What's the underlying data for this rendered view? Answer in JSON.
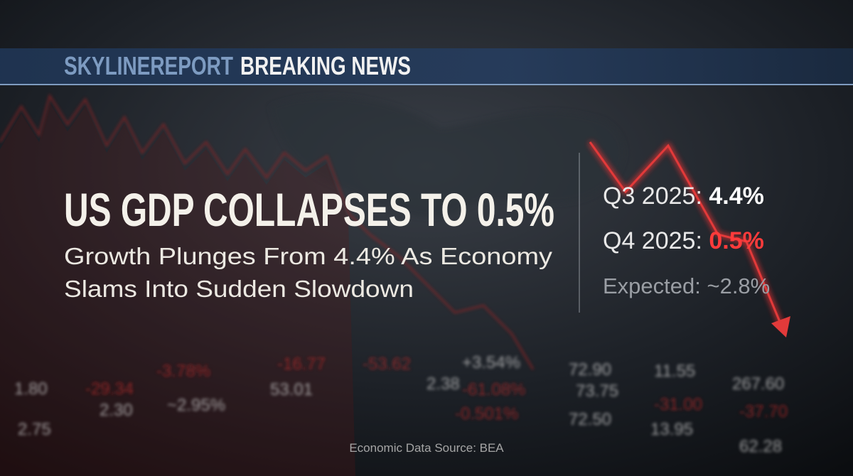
{
  "header": {
    "brand": "SKYLINEREPORT",
    "label": "BREAKING NEWS"
  },
  "headline": "US GDP COLLAPSES TO 0.5%",
  "subheadline": [
    "Growth Plunges From 4.4% As Economy",
    "Slams Into Sudden Slowdown"
  ],
  "stats": [
    {
      "label": "Q3 2025:",
      "value": "4.4%"
    },
    {
      "label": "Q4 2025:",
      "value": "0.5%"
    },
    {
      "label": "Expected: ~2.8%"
    }
  ],
  "source": "Economic Data Source: BEA",
  "ticker": [
    "1.80",
    "-29.34",
    "-3.78%",
    "-16.77",
    "-53.62",
    "+3.54%",
    "72.90",
    "11.55",
    "267.60",
    "2.75",
    "2.30",
    "~2.95%",
    "53.01",
    "2.38",
    "-61.08%",
    "73.75",
    "-31.00",
    "-37.70",
    "-0.501%",
    "72.50",
    "13.95",
    "62.28"
  ]
}
